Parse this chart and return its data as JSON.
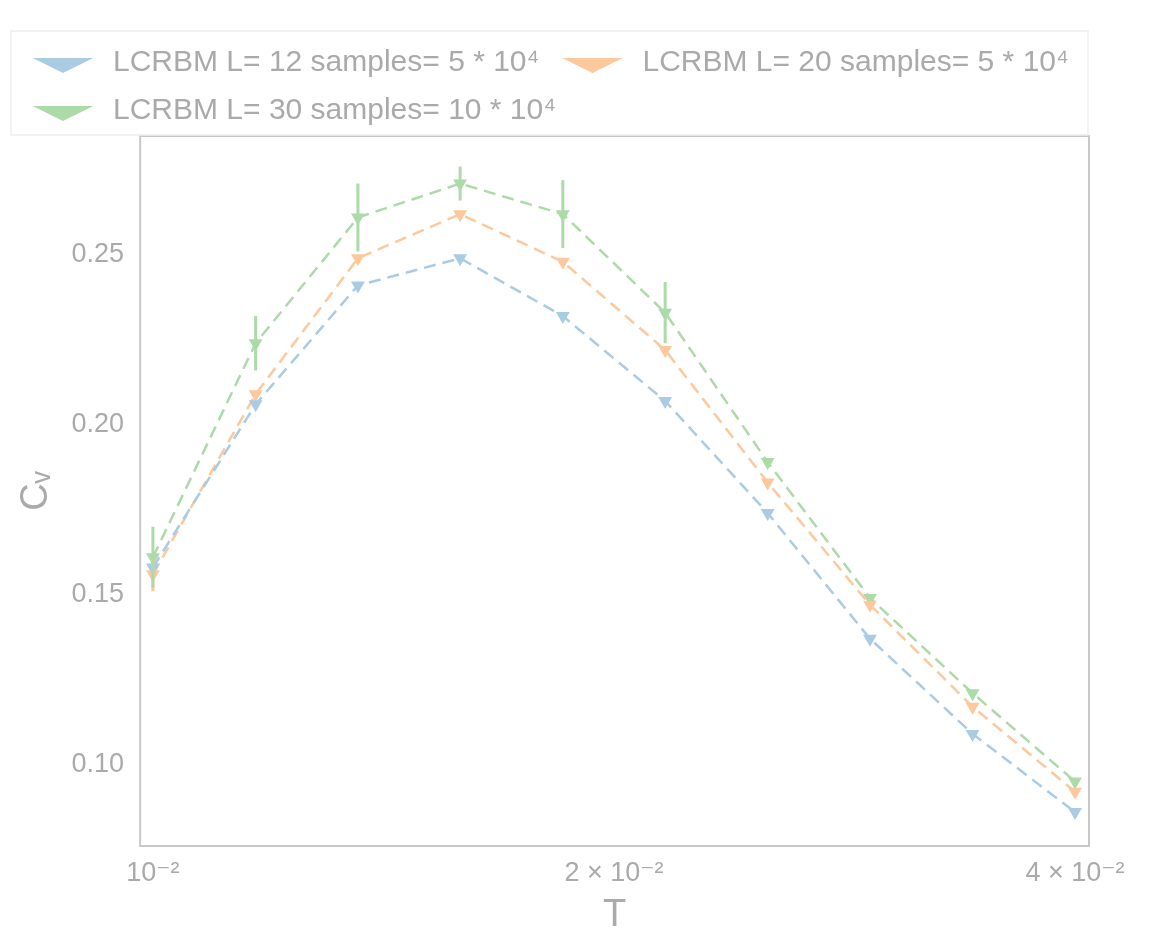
{
  "chart_data": {
    "type": "line",
    "xlabel": "T",
    "ylabel": "Cᵥ",
    "log": "x",
    "grid": false,
    "legend": "top",
    "marker": "triangle",
    "line_style": "dashed",
    "x": [
      0.01,
      0.01167,
      0.01361,
      0.01587,
      0.01852,
      0.0216,
      0.0252,
      0.02939,
      0.03429,
      0.04
    ],
    "xlim": [
      0.00981,
      0.04085
    ],
    "xticks": [
      {
        "value": 0.01,
        "label": "10⁻²"
      },
      {
        "value": 0.02,
        "label": "2 × 10⁻²"
      },
      {
        "value": 0.04,
        "label": "4 × 10⁻²"
      }
    ],
    "ylim": [
      0.076,
      0.285
    ],
    "yticks": [
      {
        "value": 0.1,
        "label": "0.10"
      },
      {
        "value": 0.15,
        "label": "0.15"
      },
      {
        "value": 0.2,
        "label": "0.20"
      },
      {
        "value": 0.25,
        "label": "0.25"
      }
    ],
    "series": [
      {
        "name": "LCRBM L= 12 samples= 5 * 10⁴",
        "color": "#abcbe3",
        "values": [
          0.158,
          0.206,
          0.241,
          0.249,
          0.232,
          0.207,
          0.174,
          0.137,
          0.109,
          0.086
        ]
      },
      {
        "name": "LCRBM L= 20 samples= 5 * 10⁴",
        "color": "#fcc89c",
        "values": [
          0.156,
          0.209,
          0.249,
          0.262,
          0.248,
          0.222,
          0.183,
          0.147,
          0.117,
          0.092
        ],
        "errors": [
          0.005,
          null,
          null,
          null,
          null,
          null,
          null,
          null,
          null,
          null
        ]
      },
      {
        "name": "LCRBM L= 30 samples= 10 * 10⁴",
        "color": "#acdaa8",
        "values": [
          0.161,
          0.224,
          0.261,
          0.271,
          0.262,
          0.233,
          0.189,
          0.149,
          0.121,
          0.095
        ],
        "errors": [
          0.009,
          0.008,
          0.01,
          0.005,
          0.01,
          0.009,
          null,
          null,
          null,
          null
        ]
      }
    ]
  }
}
